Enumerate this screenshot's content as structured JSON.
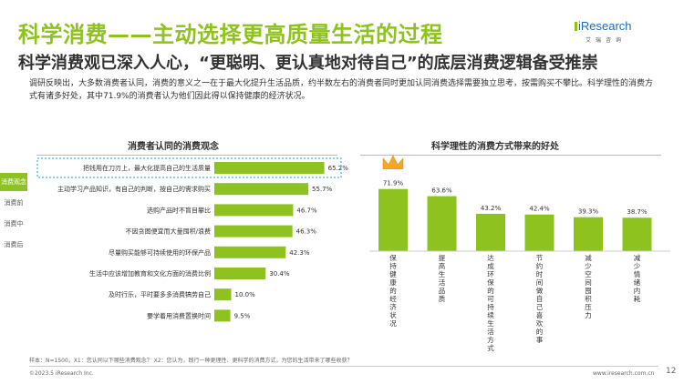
{
  "header": {
    "title": "科学消费——主动选择更高质量生活的过程",
    "subtitle": "科学消费观已深入人心，“更聪明、更认真地对待自己”的底层消费逻辑备受推崇",
    "intro": "调研反映出，大多数消费者认同，消费的意义之一在于最大化提升生活品质，约半数左右的消费者同时更加认同消费选择需要独立思考，按需购买不攀比。科学理性的消费方式有诸多好处，其中71.9%的消费者认为他们因此得以保持健康的经济状况。"
  },
  "logo": {
    "name": "iResearch",
    "cn": "艾瑞咨询"
  },
  "side_tabs": [
    {
      "label": "消费观念",
      "active": true
    },
    {
      "label": "消费前",
      "active": false
    },
    {
      "label": "消费中",
      "active": false
    },
    {
      "label": "消费后",
      "active": false
    }
  ],
  "colors": {
    "accent": "#8dc21f",
    "highlight_border": "#1a9fd9",
    "text": "#333333"
  },
  "chart_data": [
    {
      "type": "bar",
      "orientation": "horizontal",
      "title": "消费者认同的消费观念",
      "categories": [
        "把钱用在刀刃上，最大化提高自己的生活质量",
        "主动学习产品知识，有自己的判断，按自己的需求购买",
        "选购产品时不盲目攀比",
        "不因贪图便宜而大量囤积/浪费",
        "尽量购买能够可持续使用的环保产品",
        "生活中应该增加教育和文化方面的消费比例",
        "及时行乐，平时要多多消费犒劳自己",
        "要学着用消费置换时间"
      ],
      "values": [
        65.2,
        55.7,
        46.7,
        46.3,
        42.3,
        30.4,
        10.0,
        9.5
      ],
      "value_labels": [
        "65.2%",
        "55.7%",
        "46.7%",
        "46.3%",
        "42.3%",
        "30.4%",
        "10.0%",
        "9.5%"
      ],
      "highlighted_index": 0,
      "xlim": [
        0,
        100
      ]
    },
    {
      "type": "bar",
      "orientation": "vertical",
      "title": "科学理性的消费方式带来的好处",
      "categories": [
        "保持健康的经济状况",
        "提高生活品质",
        "达成环保的可持续生活方式",
        "节约时间做自己喜欢的事",
        "减少空间囤积压力",
        "减少情绪内耗"
      ],
      "values": [
        71.9,
        63.6,
        43.2,
        42.4,
        39.3,
        38.7
      ],
      "value_labels": [
        "71.9%",
        "63.6%",
        "43.2%",
        "42.4%",
        "39.3%",
        "38.7%"
      ],
      "ylim": [
        0,
        100
      ],
      "crown_on_index": 0
    }
  ],
  "footer": {
    "note": "样本：N=1500，X1：您认同以下哪些消费观念？ X2：您认为，践行一种更理性、更科学的消费方式，为您的生活带来了哪些收获？",
    "copyright": "©2023.5 iResearch Inc.",
    "website": "www.iresearch.com.cn",
    "page": "12"
  }
}
